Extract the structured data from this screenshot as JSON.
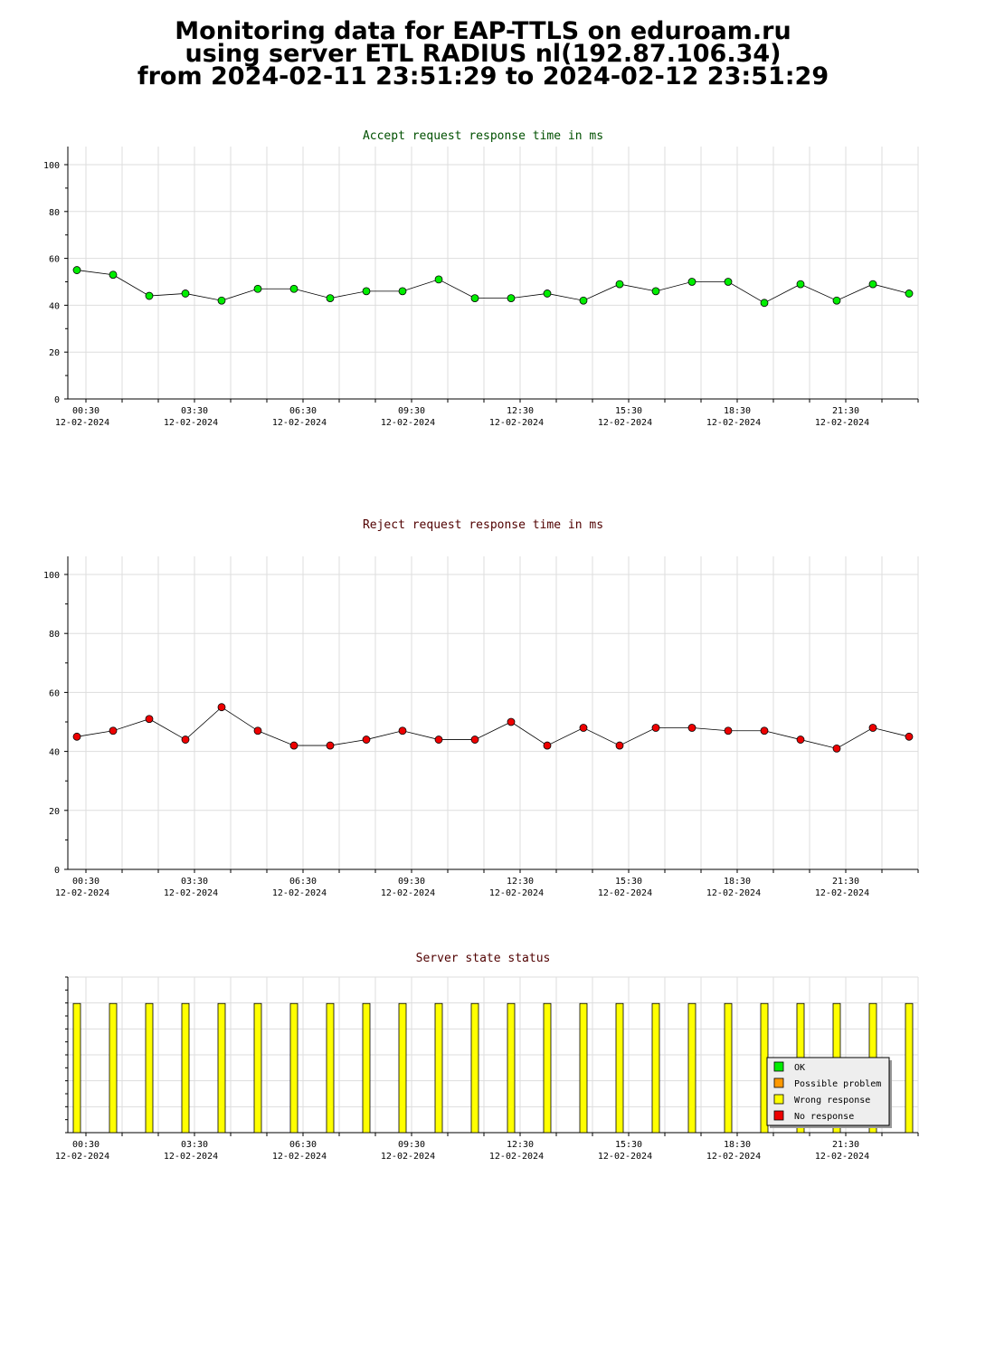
{
  "header": {
    "line1": "Monitoring data for EAP-TTLS on eduroam.ru",
    "line2": "using server ETL RADIUS nl(192.87.106.34)",
    "line3": "from 2024-02-11 23:51:29 to 2024-02-12 23:51:29"
  },
  "x_ticks": [
    {
      "time": "00:30",
      "date": "12-02-2024"
    },
    {
      "time": "03:30",
      "date": "12-02-2024"
    },
    {
      "time": "06:30",
      "date": "12-02-2024"
    },
    {
      "time": "09:30",
      "date": "12-02-2024"
    },
    {
      "time": "12:30",
      "date": "12-02-2024"
    },
    {
      "time": "15:30",
      "date": "12-02-2024"
    },
    {
      "time": "18:30",
      "date": "12-02-2024"
    },
    {
      "time": "21:30",
      "date": "12-02-2024"
    }
  ],
  "chart_data": [
    {
      "type": "line",
      "title": "Accept request response time in ms",
      "title_color": "#005000",
      "marker_color": "#00ee00",
      "ylim": [
        0,
        100
      ],
      "y_ticks": [
        0,
        20,
        40,
        60,
        80,
        100
      ],
      "grid": true,
      "x": [
        "00:15",
        "01:15",
        "02:15",
        "03:15",
        "04:15",
        "05:15",
        "06:15",
        "07:15",
        "08:15",
        "09:15",
        "10:15",
        "11:15",
        "12:15",
        "13:15",
        "14:15",
        "15:15",
        "16:15",
        "17:15",
        "18:15",
        "19:15",
        "20:15",
        "21:15",
        "22:15",
        "23:15"
      ],
      "values": [
        55,
        53,
        44,
        45,
        42,
        47,
        47,
        43,
        46,
        46,
        51,
        43,
        43,
        45,
        42,
        49,
        46,
        50,
        50,
        41,
        49,
        42,
        49,
        45
      ]
    },
    {
      "type": "line",
      "title": "Reject request response time in ms",
      "title_color": "#500000",
      "marker_color": "#ee0000",
      "ylim": [
        0,
        100
      ],
      "y_ticks": [
        0,
        20,
        40,
        60,
        80,
        100
      ],
      "grid": true,
      "x": [
        "00:15",
        "01:15",
        "02:15",
        "03:15",
        "04:15",
        "05:15",
        "06:15",
        "07:15",
        "08:15",
        "09:15",
        "10:15",
        "11:15",
        "12:15",
        "13:15",
        "14:15",
        "15:15",
        "16:15",
        "17:15",
        "18:15",
        "19:15",
        "20:15",
        "21:15",
        "22:15",
        "23:15"
      ],
      "values": [
        45,
        47,
        51,
        44,
        55,
        47,
        42,
        42,
        44,
        47,
        44,
        44,
        50,
        42,
        48,
        42,
        48,
        48,
        47,
        47,
        44,
        41,
        48,
        45
      ]
    },
    {
      "type": "bar",
      "title": "Server state status",
      "title_color": "#500000",
      "grid": true,
      "categories": [
        "00:15",
        "01:15",
        "02:15",
        "03:15",
        "04:15",
        "05:15",
        "06:15",
        "07:15",
        "08:15",
        "09:15",
        "10:15",
        "11:15",
        "12:15",
        "13:15",
        "14:15",
        "15:15",
        "16:15",
        "17:15",
        "18:15",
        "19:15",
        "20:15",
        "21:15",
        "22:15",
        "23:15"
      ],
      "states": [
        "Wrong response",
        "Wrong response",
        "Wrong response",
        "Wrong response",
        "Wrong response",
        "Wrong response",
        "Wrong response",
        "Wrong response",
        "Wrong response",
        "Wrong response",
        "Wrong response",
        "Wrong response",
        "Wrong response",
        "Wrong response",
        "Wrong response",
        "Wrong response",
        "Wrong response",
        "Wrong response",
        "Wrong response",
        "Wrong response",
        "Wrong response",
        "Wrong response",
        "Wrong response",
        "Wrong response"
      ],
      "level": 0.83,
      "legend_placement": "bottom-right",
      "legend": [
        {
          "label": "OK",
          "color": "#00ee00"
        },
        {
          "label": "Possible problem",
          "color": "#ff9900"
        },
        {
          "label": "Wrong response",
          "color": "#ffff00"
        },
        {
          "label": "No response",
          "color": "#ee0000"
        }
      ]
    }
  ]
}
